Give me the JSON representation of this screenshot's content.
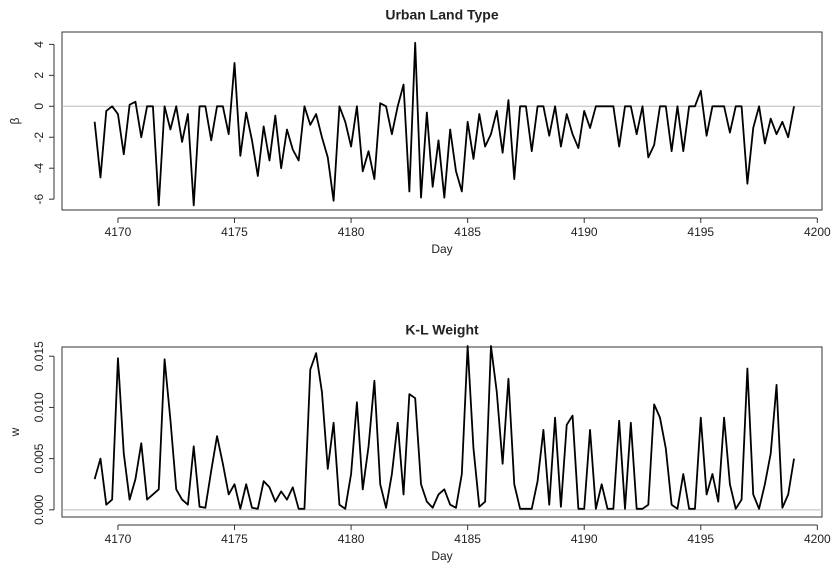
{
  "chart_data": [
    {
      "type": "line",
      "title": "Urban Land Type",
      "xlabel": "Day",
      "ylabel": "β",
      "xlim": [
        4167.6,
        4200.2
      ],
      "xticks": [
        4170,
        4175,
        4180,
        4185,
        4190,
        4195,
        4200
      ],
      "ylim": [
        -6.7,
        4.8
      ],
      "yticks": [
        -6,
        -4,
        -2,
        0,
        2,
        4
      ],
      "hline": 0,
      "x": [
        4169,
        4169.25,
        4169.5,
        4169.75,
        4170,
        4170.25,
        4170.5,
        4170.75,
        4171,
        4171.25,
        4171.5,
        4171.75,
        4172,
        4172.25,
        4172.5,
        4172.75,
        4173,
        4173.25,
        4173.5,
        4173.75,
        4174,
        4174.25,
        4174.5,
        4174.75,
        4175,
        4175.25,
        4175.5,
        4175.75,
        4176,
        4176.25,
        4176.5,
        4176.75,
        4177,
        4177.25,
        4177.5,
        4177.75,
        4178,
        4178.25,
        4178.5,
        4178.75,
        4179,
        4179.25,
        4179.5,
        4179.75,
        4180,
        4180.25,
        4180.5,
        4180.75,
        4181,
        4181.25,
        4181.5,
        4181.75,
        4182,
        4182.25,
        4182.5,
        4182.75,
        4183,
        4183.25,
        4183.5,
        4183.75,
        4184,
        4184.25,
        4184.5,
        4184.75,
        4185,
        4185.25,
        4185.5,
        4185.75,
        4186,
        4186.25,
        4186.5,
        4186.75,
        4187,
        4187.25,
        4187.5,
        4187.75,
        4188,
        4188.25,
        4188.5,
        4188.75,
        4189,
        4189.25,
        4189.5,
        4189.75,
        4190,
        4190.25,
        4190.5,
        4190.75,
        4191,
        4191.25,
        4191.5,
        4191.75,
        4192,
        4192.25,
        4192.5,
        4192.75,
        4193,
        4193.25,
        4193.5,
        4193.75,
        4194,
        4194.25,
        4194.5,
        4194.75,
        4195,
        4195.25,
        4195.5,
        4195.75,
        4196,
        4196.25,
        4196.5,
        4196.75,
        4197,
        4197.25,
        4197.5,
        4197.75,
        4198,
        4198.25,
        4198.5,
        4198.75,
        4199
      ],
      "series": [
        {
          "color": "#000000",
          "values": [
            -1.0,
            -4.6,
            -0.3,
            0,
            -0.5,
            -3.1,
            0.1,
            0.3,
            -2.0,
            0,
            0,
            -6.4,
            0,
            -1.5,
            0,
            -2.3,
            -0.5,
            -6.4,
            0,
            0,
            -2.2,
            0,
            0,
            -1.8,
            2.8,
            -3.2,
            -0.4,
            -2.2,
            -4.5,
            -1.3,
            -3.5,
            -0.6,
            -4.0,
            -1.5,
            -2.8,
            -3.5,
            0,
            -1.2,
            -0.5,
            -2.0,
            -3.3,
            -6.1,
            0,
            -1.0,
            -2.6,
            0,
            -4.2,
            -2.9,
            -4.7,
            0.2,
            0,
            -1.8,
            0,
            1.4,
            -5.5,
            4.1,
            -5.9,
            -0.4,
            -5.2,
            -2.2,
            -5.9,
            -1.5,
            -4.2,
            -5.5,
            -1.0,
            -3.4,
            -0.5,
            -2.6,
            -1.8,
            -0.3,
            -3.0,
            0.4,
            -4.7,
            0,
            0,
            -2.9,
            0,
            0,
            -1.9,
            0,
            -2.6,
            -0.5,
            -1.8,
            -2.7,
            -0.3,
            -1.4,
            0,
            0,
            0,
            0,
            -2.6,
            0,
            0,
            -1.8,
            0,
            -3.3,
            -2.5,
            0,
            0,
            -2.9,
            0,
            -2.9,
            0,
            0,
            1.0,
            -1.9,
            0,
            0,
            0,
            -1.7,
            0,
            0,
            -5.0,
            -1.4,
            0,
            -2.4,
            -0.8,
            -1.8,
            -1.0,
            -2.0,
            0
          ]
        }
      ]
    },
    {
      "type": "line",
      "title": "K-L Weight",
      "xlabel": "Day",
      "ylabel": "w",
      "xlim": [
        4167.6,
        4200.2
      ],
      "xticks": [
        4170,
        4175,
        4180,
        4185,
        4190,
        4195,
        4200
      ],
      "ylim": [
        -0.0007,
        0.0159
      ],
      "yticks": [
        {
          "value": 0,
          "label": "0.000"
        },
        0.005,
        {
          "value": 0.01,
          "label": "0.010"
        },
        0.015
      ],
      "hline": 0,
      "x": [
        4169,
        4169.25,
        4169.5,
        4169.75,
        4170,
        4170.25,
        4170.5,
        4170.75,
        4171,
        4171.25,
        4171.5,
        4171.75,
        4172,
        4172.25,
        4172.5,
        4172.75,
        4173,
        4173.25,
        4173.5,
        4173.75,
        4174,
        4174.25,
        4174.5,
        4174.75,
        4175,
        4175.25,
        4175.5,
        4175.75,
        4176,
        4176.25,
        4176.5,
        4176.75,
        4177,
        4177.25,
        4177.5,
        4177.75,
        4178,
        4178.25,
        4178.5,
        4178.75,
        4179,
        4179.25,
        4179.5,
        4179.75,
        4180,
        4180.25,
        4180.5,
        4180.75,
        4181,
        4181.25,
        4181.5,
        4181.75,
        4182,
        4182.25,
        4182.5,
        4182.75,
        4183,
        4183.25,
        4183.5,
        4183.75,
        4184,
        4184.25,
        4184.5,
        4184.75,
        4185,
        4185.25,
        4185.5,
        4185.75,
        4186,
        4186.25,
        4186.5,
        4186.75,
        4187,
        4187.25,
        4187.5,
        4187.75,
        4188,
        4188.25,
        4188.5,
        4188.75,
        4189,
        4189.25,
        4189.5,
        4189.75,
        4190,
        4190.25,
        4190.5,
        4190.75,
        4191,
        4191.25,
        4191.5,
        4191.75,
        4192,
        4192.25,
        4192.5,
        4192.75,
        4193,
        4193.25,
        4193.5,
        4193.75,
        4194,
        4194.25,
        4194.5,
        4194.75,
        4195,
        4195.25,
        4195.5,
        4195.75,
        4196,
        4196.25,
        4196.5,
        4196.75,
        4197,
        4197.25,
        4197.5,
        4197.75,
        4198,
        4198.25,
        4198.5,
        4198.75,
        4199
      ],
      "series": [
        {
          "color": "#000000",
          "values": [
            0.003,
            0.005,
            0.0005,
            0.001,
            0.0148,
            0.0055,
            0.001,
            0.003,
            0.0065,
            0.001,
            0.0015,
            0.002,
            0.0147,
            0.0088,
            0.002,
            0.001,
            0.0005,
            0.0062,
            0.0003,
            0.0002,
            0.0038,
            0.0072,
            0.0045,
            0.0015,
            0.0025,
            0.0001,
            0.0025,
            0.0002,
            0.0001,
            0.0028,
            0.0022,
            0.0008,
            0.0018,
            0.001,
            0.0022,
            0.0001,
            0.0001,
            0.0137,
            0.0153,
            0.0115,
            0.004,
            0.0085,
            0.0005,
            0.0001,
            0.0035,
            0.0105,
            0.002,
            0.0062,
            0.0126,
            0.0025,
            0.0002,
            0.0035,
            0.0085,
            0.0015,
            0.0113,
            0.0109,
            0.0025,
            0.0008,
            0.0002,
            0.0015,
            0.002,
            0.0005,
            0.0002,
            0.0035,
            0.016,
            0.006,
            0.0003,
            0.0008,
            0.016,
            0.0115,
            0.0045,
            0.0128,
            0.0025,
            0.0001,
            0.0001,
            0.0001,
            0.0028,
            0.0078,
            0.0005,
            0.009,
            0.0003,
            0.0083,
            0.0092,
            0.0001,
            0.0001,
            0.0078,
            0.0001,
            0.0025,
            0.0001,
            0.0001,
            0.0087,
            0.0001,
            0.0085,
            0.0001,
            0.0001,
            0.0005,
            0.0103,
            0.009,
            0.006,
            0.0005,
            0.0001,
            0.0035,
            0.0001,
            0.0001,
            0.009,
            0.0015,
            0.0035,
            0.0008,
            0.009,
            0.0025,
            0.0001,
            0.001,
            0.0138,
            0.0015,
            0.0001,
            0.0025,
            0.0055,
            0.0122,
            0.0002,
            0.0015,
            0.005
          ]
        }
      ]
    }
  ]
}
